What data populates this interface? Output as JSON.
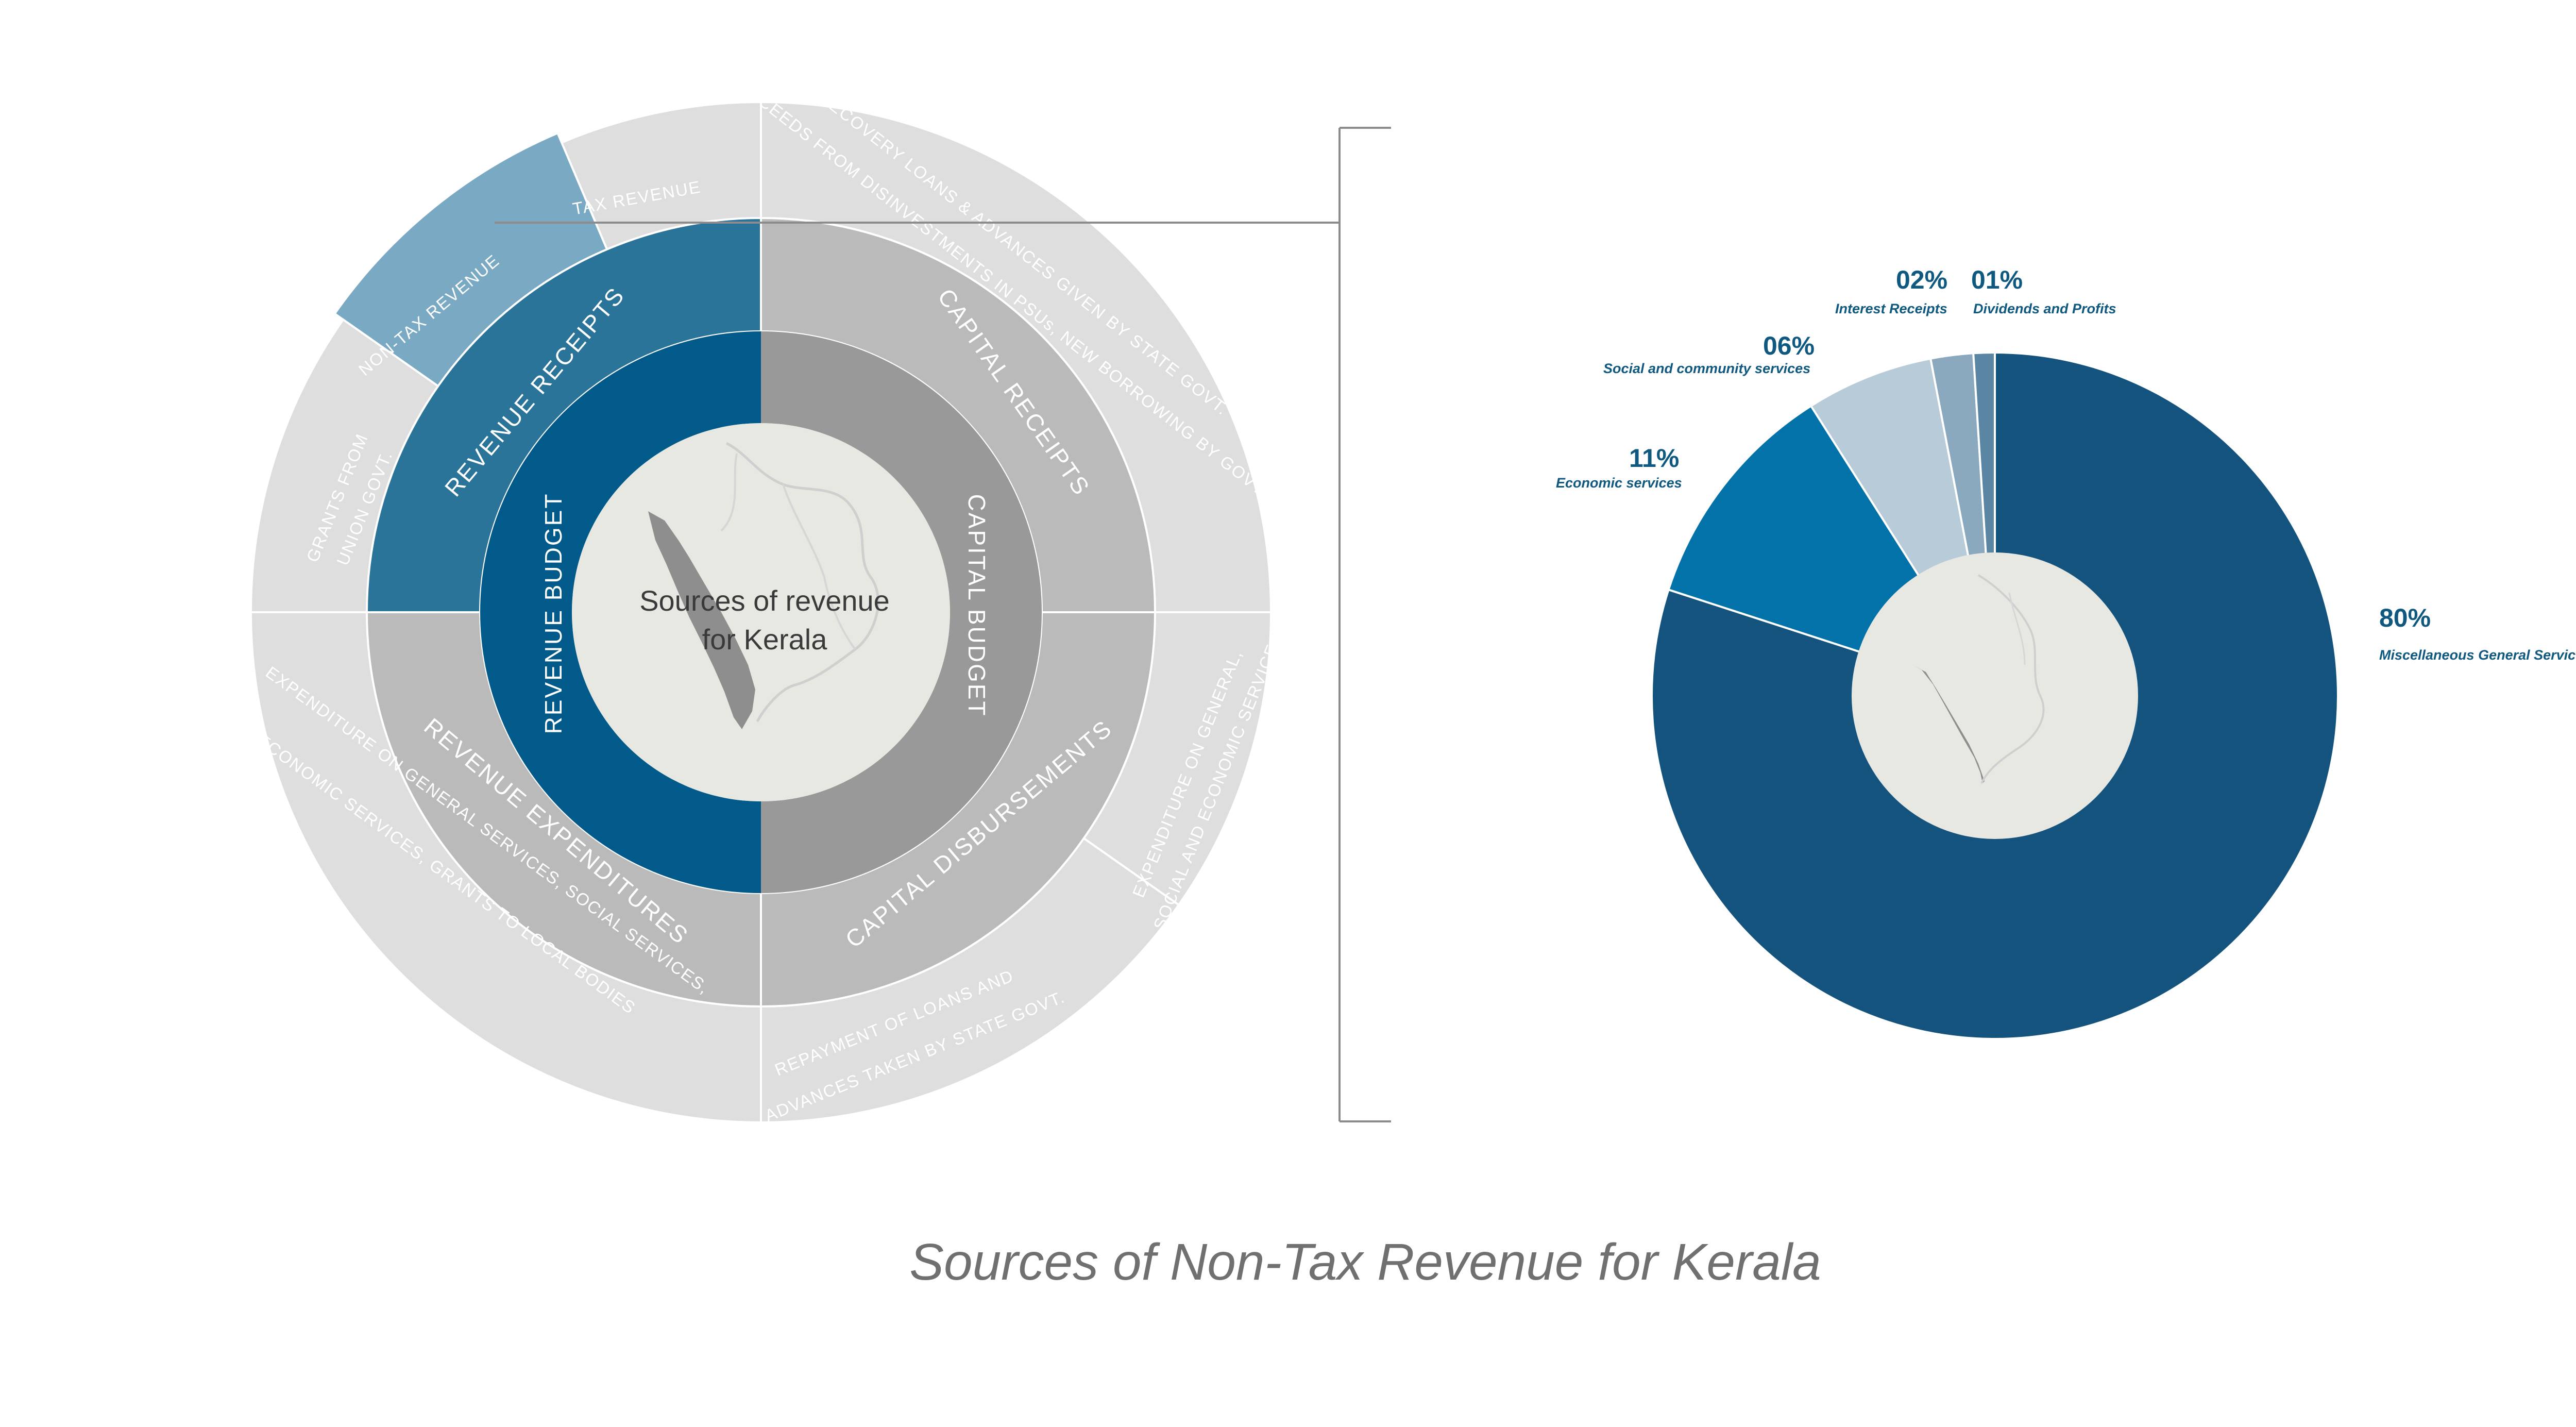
{
  "title": "Sources of Non-Tax Revenue for Kerala",
  "diagram": {
    "center_label": [
      "Sources of revenue",
      "for Kerala"
    ],
    "inner_ring": [
      {
        "label": "REVENUE  BUDGET",
        "color": "#015a89"
      },
      {
        "label": "CAPITAL  BUDGET",
        "color": "#999999"
      }
    ],
    "middle_ring": [
      {
        "label": "REVENUE RECEIPTS",
        "color": "#2a7399"
      },
      {
        "label": "CAPITAL RECEIPTS",
        "color": "#bababa"
      },
      {
        "label": "CAPITAL  DISBURSEMENTS",
        "color": "#bababa"
      },
      {
        "label": "REVENUE  EXPENDITURES",
        "color": "#bababa"
      }
    ],
    "outer_ring": [
      {
        "label": "TAX REVENUE",
        "color": "#dedede"
      },
      {
        "label": "NON-TAX REVENUE",
        "color": "#7aa9c3",
        "text_color": "#2f2f2f"
      },
      {
        "label": [
          "GRANTS FROM",
          "UNION GOVT."
        ],
        "color": "#dedede"
      },
      {
        "label": [
          "RECOVERY LOANS & ADVANCES GIVEN BY STATE GOVT.",
          "PROCEEDS FROM DISINVESTMENTS IN PSUs, NEW BORROWING BY GOVT."
        ],
        "color": "#dedede"
      },
      {
        "label": [
          "EXPENDITURE ON GENERAL,",
          "SOCIAL AND ECONOMIC SERVICES"
        ],
        "color": "#dedede"
      },
      {
        "label": [
          "REPAYMENT OF LOANS AND",
          "ADVANCES TAKEN BY STATE GOVT."
        ],
        "color": "#dedede"
      },
      {
        "label": [
          "EXPENDITURE ON GENERAL SERVICES, SOCIAL SERVICES,",
          "ECONOMIC SERVICES, GRANTS TO LOCAL BODIES"
        ],
        "color": "#dedede"
      }
    ]
  },
  "chart_data": {
    "type": "pie",
    "title": "",
    "categories": [
      "Miscellaneous General Services",
      "Economic services",
      "Social and community services",
      "Interest Receipts",
      "Dividends and Profits"
    ],
    "values": [
      80,
      11,
      6,
      2,
      1
    ],
    "labels": [
      "80%",
      "11%",
      "06%",
      "02%",
      "01%"
    ],
    "colors": [
      "#13537d",
      "#0272a8",
      "#b8cbd9",
      "#8aa9bf",
      "#5b86a3"
    ],
    "legend": "none"
  }
}
